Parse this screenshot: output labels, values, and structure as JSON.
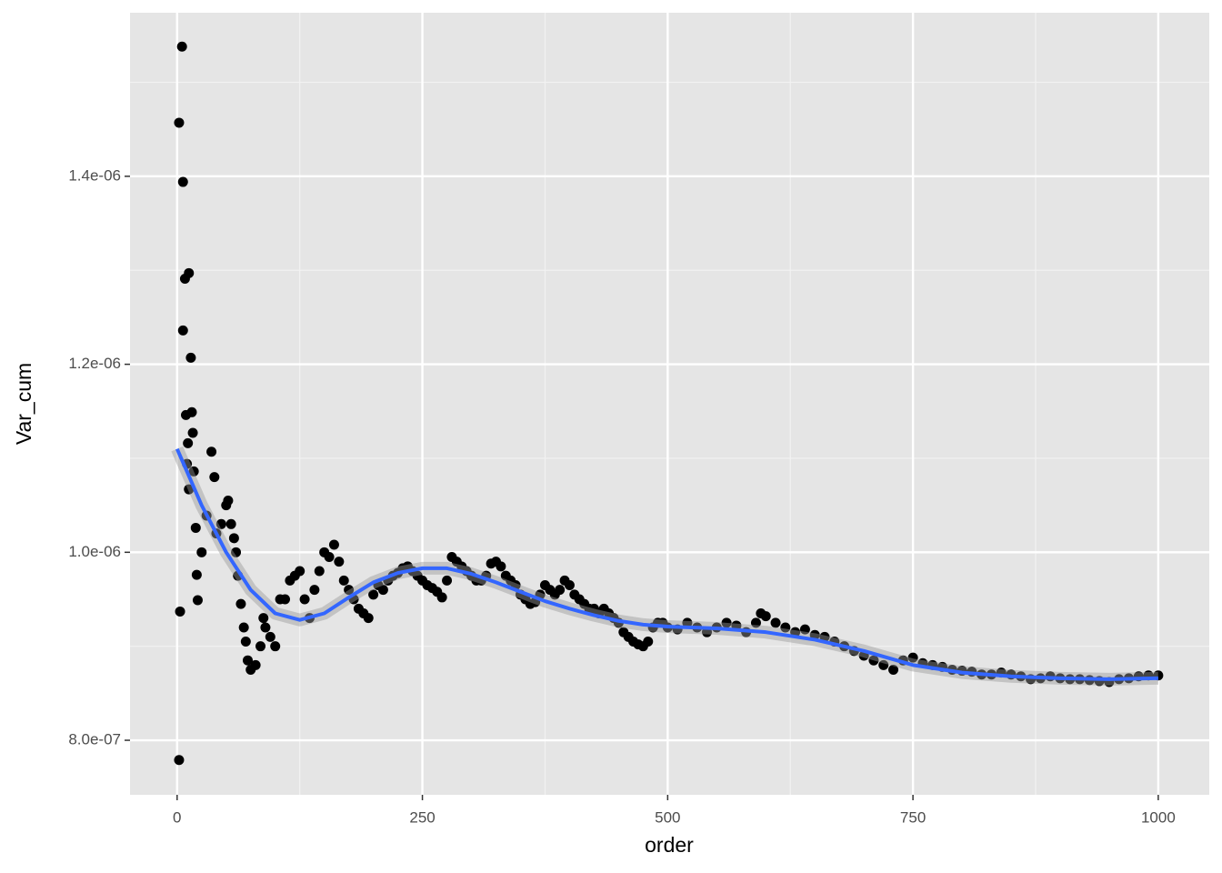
{
  "chart_data": {
    "type": "scatter",
    "x_label": "order",
    "y_label": "Var_cum",
    "xlim": [
      -48,
      1052
    ],
    "ylim": [
      7.42e-07,
      1.574e-06
    ],
    "xticks": [
      0,
      250,
      500,
      750,
      1000
    ],
    "yticks": [
      {
        "value": 8e-07,
        "label": "8.0e-07"
      },
      {
        "value": 1e-06,
        "label": "1.0e-06"
      },
      {
        "value": 1.2e-06,
        "label": "1.2e-06"
      },
      {
        "value": 1.4e-06,
        "label": "1.4e-06"
      }
    ],
    "grid": true,
    "series": [
      {
        "color": "#000000",
        "x": [
          2,
          5,
          6,
          8,
          12,
          6,
          14,
          3,
          2,
          15,
          9,
          16,
          11,
          10,
          17,
          12,
          19,
          20,
          21,
          25,
          30,
          35,
          38,
          40,
          45,
          50,
          52,
          55,
          58,
          60,
          62,
          65,
          68,
          70,
          72,
          75,
          80,
          85,
          88,
          90,
          95,
          100,
          105,
          110,
          115,
          120,
          125,
          130,
          135,
          140,
          145,
          150,
          155,
          160,
          165,
          170,
          175,
          180,
          185,
          190,
          195,
          200,
          205,
          210,
          215,
          220,
          225,
          230,
          235,
          240,
          245,
          250,
          255,
          260,
          265,
          270,
          275,
          280,
          285,
          290,
          295,
          300,
          305,
          310,
          315,
          320,
          325,
          330,
          335,
          340,
          345,
          350,
          355,
          360,
          365,
          370,
          375,
          380,
          385,
          390,
          395,
          400,
          405,
          410,
          415,
          420,
          425,
          430,
          435,
          440,
          445,
          450,
          455,
          460,
          465,
          470,
          475,
          480,
          485,
          490,
          495,
          500,
          510,
          520,
          530,
          540,
          550,
          560,
          570,
          580,
          590,
          595,
          600,
          610,
          620,
          630,
          640,
          650,
          660,
          670,
          680,
          690,
          700,
          710,
          720,
          730,
          740,
          750,
          760,
          770,
          780,
          790,
          800,
          810,
          820,
          830,
          840,
          850,
          860,
          870,
          880,
          890,
          900,
          910,
          920,
          930,
          940,
          950,
          960,
          970,
          980,
          990,
          1000
        ],
        "values": [
          1.457e-06,
          1.538e-06,
          1.394e-06,
          1.291e-06,
          1.297e-06,
          1.236e-06,
          1.207e-06,
          9.37e-07,
          7.79e-07,
          1.149e-06,
          1.146e-06,
          1.127e-06,
          1.116e-06,
          1.094e-06,
          1.086e-06,
          1.067e-06,
          1.026e-06,
          9.76e-07,
          9.49e-07,
          1e-06,
          1.039e-06,
          1.107e-06,
          1.08e-06,
          1.02e-06,
          1.03e-06,
          1.05e-06,
          1.055e-06,
          1.03e-06,
          1.015e-06,
          1e-06,
          9.75e-07,
          9.45e-07,
          9.2e-07,
          9.05e-07,
          8.85e-07,
          8.75e-07,
          8.8e-07,
          9e-07,
          9.3e-07,
          9.2e-07,
          9.1e-07,
          9e-07,
          9.5e-07,
          9.5e-07,
          9.7e-07,
          9.75e-07,
          9.8e-07,
          9.5e-07,
          9.3e-07,
          9.6e-07,
          9.8e-07,
          1e-06,
          9.95e-07,
          1.008e-06,
          9.9e-07,
          9.7e-07,
          9.6e-07,
          9.5e-07,
          9.4e-07,
          9.35e-07,
          9.3e-07,
          9.55e-07,
          9.65e-07,
          9.6e-07,
          9.7e-07,
          9.75e-07,
          9.78e-07,
          9.83e-07,
          9.85e-07,
          9.8e-07,
          9.75e-07,
          9.7e-07,
          9.65e-07,
          9.62e-07,
          9.58e-07,
          9.52e-07,
          9.7e-07,
          9.95e-07,
          9.9e-07,
          9.85e-07,
          9.8e-07,
          9.75e-07,
          9.7e-07,
          9.7e-07,
          9.75e-07,
          9.88e-07,
          9.9e-07,
          9.85e-07,
          9.75e-07,
          9.7e-07,
          9.65e-07,
          9.55e-07,
          9.5e-07,
          9.45e-07,
          9.47e-07,
          9.55e-07,
          9.65e-07,
          9.6e-07,
          9.55e-07,
          9.6e-07,
          9.7e-07,
          9.65e-07,
          9.55e-07,
          9.5e-07,
          9.45e-07,
          9.4e-07,
          9.4e-07,
          9.35e-07,
          9.4e-07,
          9.35e-07,
          9.3e-07,
          9.25e-07,
          9.15e-07,
          9.1e-07,
          9.05e-07,
          9.02e-07,
          9e-07,
          9.05e-07,
          9.2e-07,
          9.25e-07,
          9.25e-07,
          9.2e-07,
          9.18e-07,
          9.25e-07,
          9.2e-07,
          9.15e-07,
          9.2e-07,
          9.25e-07,
          9.22e-07,
          9.15e-07,
          9.25e-07,
          9.35e-07,
          9.32e-07,
          9.25e-07,
          9.2e-07,
          9.15e-07,
          9.18e-07,
          9.12e-07,
          9.1e-07,
          9.05e-07,
          9e-07,
          8.95e-07,
          8.9e-07,
          8.85e-07,
          8.8e-07,
          8.75e-07,
          8.85e-07,
          8.88e-07,
          8.82e-07,
          8.8e-07,
          8.78e-07,
          8.75e-07,
          8.74e-07,
          8.73e-07,
          8.7e-07,
          8.7e-07,
          8.72e-07,
          8.7e-07,
          8.68e-07,
          8.65e-07,
          8.66e-07,
          8.68e-07,
          8.66e-07,
          8.65e-07,
          8.65e-07,
          8.64e-07,
          8.63e-07,
          8.62e-07,
          8.65e-07,
          8.66e-07,
          8.68e-07,
          8.69e-07,
          8.69e-07
        ]
      }
    ],
    "smooth": {
      "color": "#3366ff",
      "x": [
        0,
        25,
        50,
        75,
        100,
        125,
        150,
        175,
        200,
        225,
        250,
        275,
        300,
        325,
        350,
        375,
        400,
        425,
        450,
        475,
        500,
        550,
        600,
        650,
        700,
        750,
        800,
        850,
        900,
        950,
        1000
      ],
      "values": [
        1.11e-06,
        1.05e-06,
        1e-06,
        9.6e-07,
        9.35e-07,
        9.28e-07,
        9.35e-07,
        9.52e-07,
        9.68e-07,
        9.78e-07,
        9.83e-07,
        9.83e-07,
        9.77e-07,
        9.68e-07,
        9.58e-07,
        9.48e-07,
        9.4e-07,
        9.33e-07,
        9.27e-07,
        9.23e-07,
        9.21e-07,
        9.19e-07,
        9.15e-07,
        9.07e-07,
        8.95e-07,
        8.8e-07,
        8.72e-07,
        8.68e-07,
        8.66e-07,
        8.65e-07,
        8.66e-07
      ]
    }
  }
}
